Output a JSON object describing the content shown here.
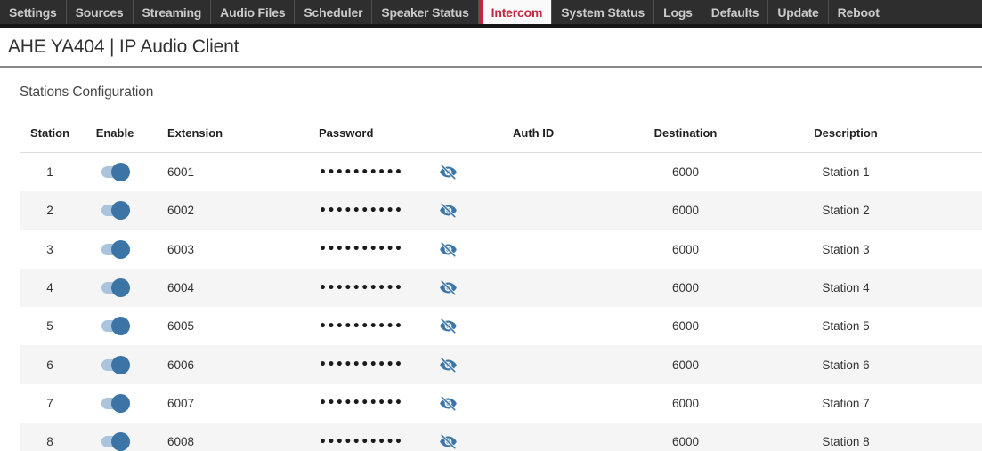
{
  "nav": {
    "tabs": [
      {
        "label": "Settings",
        "active": false
      },
      {
        "label": "Sources",
        "active": false
      },
      {
        "label": "Streaming",
        "active": false
      },
      {
        "label": "Audio Files",
        "active": false
      },
      {
        "label": "Scheduler",
        "active": false
      },
      {
        "label": "Speaker Status",
        "active": false
      },
      {
        "label": "Intercom",
        "active": true
      },
      {
        "label": "System Status",
        "active": false
      },
      {
        "label": "Logs",
        "active": false
      },
      {
        "label": "Defaults",
        "active": false
      },
      {
        "label": "Update",
        "active": false
      },
      {
        "label": "Reboot",
        "active": false
      }
    ]
  },
  "header": {
    "title": "AHE YA404 | IP Audio Client"
  },
  "section": {
    "title": "Stations Configuration"
  },
  "table": {
    "columns": [
      "Station",
      "Enable",
      "Extension",
      "Password",
      "Auth ID",
      "Destination",
      "Description"
    ],
    "rows": [
      {
        "station": "1",
        "enabled": true,
        "extension": "6001",
        "password_masked": "••••••••••",
        "auth_id": "",
        "destination": "6000",
        "description": "Station 1"
      },
      {
        "station": "2",
        "enabled": true,
        "extension": "6002",
        "password_masked": "••••••••••",
        "auth_id": "",
        "destination": "6000",
        "description": "Station 2"
      },
      {
        "station": "3",
        "enabled": true,
        "extension": "6003",
        "password_masked": "••••••••••",
        "auth_id": "",
        "destination": "6000",
        "description": "Station 3"
      },
      {
        "station": "4",
        "enabled": true,
        "extension": "6004",
        "password_masked": "••••••••••",
        "auth_id": "",
        "destination": "6000",
        "description": "Station 4"
      },
      {
        "station": "5",
        "enabled": true,
        "extension": "6005",
        "password_masked": "••••••••••",
        "auth_id": "",
        "destination": "6000",
        "description": "Station 5"
      },
      {
        "station": "6",
        "enabled": true,
        "extension": "6006",
        "password_masked": "••••••••••",
        "auth_id": "",
        "destination": "6000",
        "description": "Station 6"
      },
      {
        "station": "7",
        "enabled": true,
        "extension": "6007",
        "password_masked": "••••••••••",
        "auth_id": "",
        "destination": "6000",
        "description": "Station 7"
      },
      {
        "station": "8",
        "enabled": true,
        "extension": "6008",
        "password_masked": "••••••••••",
        "auth_id": "",
        "destination": "6000",
        "description": "Station 8"
      }
    ]
  },
  "icons": {
    "password_visibility": "eye-slash-icon"
  },
  "colors": {
    "accent_red": "#c22741",
    "nav_bg": "#2e2e2e",
    "toggle_track": "#a9c4dc",
    "toggle_knob": "#3c75a5",
    "icon_blue": "#3a76a9",
    "row_alt": "#f5f5f5"
  }
}
